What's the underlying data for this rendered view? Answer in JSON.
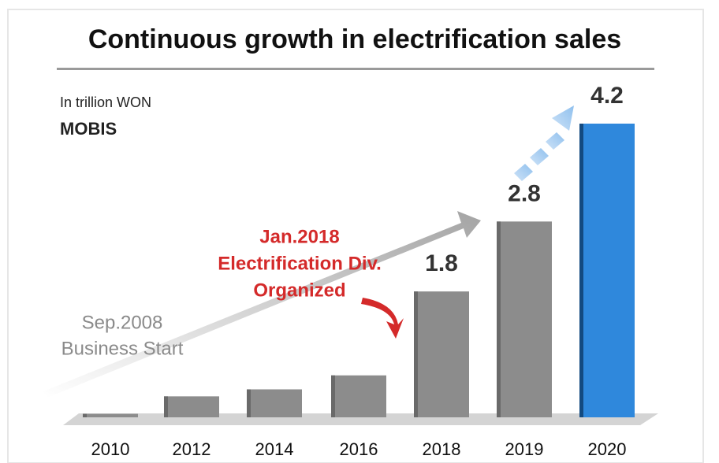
{
  "chart_data": {
    "type": "bar",
    "title": "Continuous growth in electrification sales",
    "unit_note": "In trillion WON",
    "logo": "MOBIS",
    "categories": [
      "2010",
      "2012",
      "2014",
      "2016",
      "2018",
      "2019",
      "2020"
    ],
    "values": [
      0.05,
      0.3,
      0.4,
      0.6,
      1.8,
      2.8,
      4.2
    ],
    "value_labels": [
      null,
      null,
      null,
      null,
      "1.8",
      "2.8",
      "4.2"
    ],
    "colors": [
      "#8c8c8c",
      "#8c8c8c",
      "#8c8c8c",
      "#8c8c8c",
      "#8c8c8c",
      "#8c8c8c",
      "#2f88dc"
    ],
    "annotations": [
      {
        "lines": [
          "Jan.2018",
          "Electrification Div.",
          "Organized"
        ],
        "color": "#d42a2a"
      },
      {
        "lines": [
          "Sep.2008",
          "Business Start"
        ],
        "color": "#8a8a8a"
      }
    ]
  }
}
